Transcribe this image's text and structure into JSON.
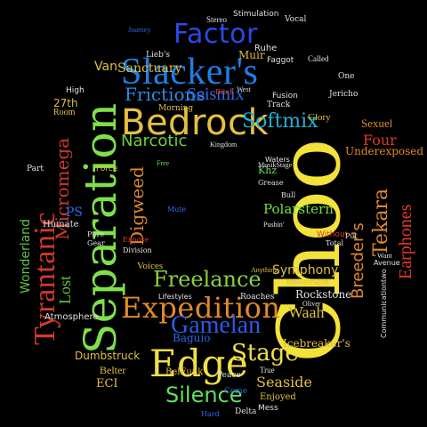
{
  "colors": {
    "background": "#000000"
  },
  "words": [
    {
      "text": "Choo",
      "color": "#f2e23a"
    },
    {
      "text": "Separation",
      "color": "#7fe04a"
    },
    {
      "text": "Slacker's",
      "color": "#1e7fe6"
    },
    {
      "text": "Bedrock",
      "color": "#e6c040"
    },
    {
      "text": "Edge",
      "color": "#f0e040"
    },
    {
      "text": "Tyrantanic",
      "color": "#d63a2a"
    },
    {
      "text": "Expedition",
      "color": "#e08a2a"
    },
    {
      "text": "Factor",
      "color": "#2a4ae6"
    },
    {
      "text": "Gamelan",
      "color": "#2a5ae6"
    },
    {
      "text": "Freelance",
      "color": "#8ad040"
    },
    {
      "text": "Stage",
      "color": "#f0e040"
    },
    {
      "text": "Silence",
      "color": "#60e060"
    },
    {
      "text": "Frictions",
      "color": "#2a8ae6"
    },
    {
      "text": "Softmix",
      "color": "#20b0d0"
    },
    {
      "text": "Seismix",
      "color": "#2a6ae6"
    },
    {
      "text": "Narcotic",
      "color": "#6ad040"
    },
    {
      "text": "Four",
      "color": "#e03a2a"
    },
    {
      "text": "Earphones",
      "color": "#e03a2a"
    },
    {
      "text": "Tekara",
      "color": "#e08a2a"
    },
    {
      "text": "Breeder's",
      "color": "#e08a2a"
    },
    {
      "text": "Waah",
      "color": "#e0c040"
    },
    {
      "text": "Seaside",
      "color": "#e0c040"
    },
    {
      "text": "Polarstern",
      "color": "#70e040"
    },
    {
      "text": "Symphony",
      "color": "#e0c040"
    },
    {
      "text": "Digweed",
      "color": "#e08a2a"
    },
    {
      "text": "Micromega",
      "color": "#d03a30"
    },
    {
      "text": "Lost",
      "color": "#60c040"
    },
    {
      "text": "Wonderland",
      "color": "#60c040"
    },
    {
      "text": "Sanctuary",
      "color": "#e0c040"
    },
    {
      "text": "Glory",
      "color": "#e0c040"
    },
    {
      "text": "Muir",
      "color": "#e0c040"
    },
    {
      "text": "Van",
      "color": "#e0c040"
    },
    {
      "text": "Sexuel",
      "color": "#e08a2a"
    },
    {
      "text": "Underexposed",
      "color": "#e08a2a"
    },
    {
      "text": "Baguio",
      "color": "#2a6ae6"
    },
    {
      "text": "Dumbstruck",
      "color": "#e0c040"
    },
    {
      "text": "Icebreaker's",
      "color": "#e0c040"
    },
    {
      "text": "Rockstone",
      "color": "#e0e0e0"
    },
    {
      "text": "Voices",
      "color": "#e0c040"
    },
    {
      "text": "Atmosphere",
      "color": "#e0e0e0"
    },
    {
      "text": "ECI",
      "color": "#e0c040"
    },
    {
      "text": "Belter",
      "color": "#e0c040"
    },
    {
      "text": "BelFunk",
      "color": "#e0c040"
    },
    {
      "text": "27th",
      "color": "#e0c040"
    },
    {
      "text": "Room",
      "color": "#e0c040"
    },
    {
      "text": "PS",
      "color": "#2a6ae6"
    },
    {
      "text": "Khz",
      "color": "#60e060"
    },
    {
      "text": "Ruhe",
      "color": "#e0e0e0"
    },
    {
      "text": "Enjoyed",
      "color": "#e0c040"
    },
    {
      "text": "Humate",
      "color": "#e0e0e0"
    },
    {
      "text": "Stereo",
      "color": "#e0e0e0"
    },
    {
      "text": "Stimulation",
      "color": "#e0e0e0"
    },
    {
      "text": "Vocal",
      "color": "#e0e0e0"
    },
    {
      "text": "Journey",
      "color": "#2a6ae6"
    },
    {
      "text": "Lieb's",
      "color": "#e0e0e0"
    },
    {
      "text": "Faggot",
      "color": "#e0e0e0"
    },
    {
      "text": "Called",
      "color": "#e0e0e0"
    },
    {
      "text": "One",
      "color": "#e0e0e0"
    },
    {
      "text": "Jericho",
      "color": "#e0e0e0"
    },
    {
      "text": "Fusion",
      "color": "#e0e0e0"
    },
    {
      "text": "Track",
      "color": "#e0e0e0"
    },
    {
      "text": "Bitch",
      "color": "#e03a2a"
    },
    {
      "text": "West",
      "color": "#e0e0e0"
    },
    {
      "text": "High",
      "color": "#e0e0e0"
    },
    {
      "text": "Morning",
      "color": "#e0c040"
    },
    {
      "text": "Kingdom",
      "color": "#e0e0e0"
    },
    {
      "text": "Part",
      "color": "#e0e0e0"
    },
    {
      "text": "Force",
      "color": "#e0c040"
    },
    {
      "text": "Free",
      "color": "#60e060"
    },
    {
      "text": "Bull",
      "color": "#e0e0e0"
    },
    {
      "text": "Pure",
      "color": "#e0e0e0"
    },
    {
      "text": "Without",
      "color": "#e03a2a"
    },
    {
      "text": "Put",
      "color": "#e0e0e0"
    },
    {
      "text": "Total",
      "color": "#e0e0e0"
    },
    {
      "text": "Want",
      "color": "#e0e0e0"
    },
    {
      "text": "Avenue",
      "color": "#e0e0e0"
    },
    {
      "text": "Division",
      "color": "#e0e0e0"
    },
    {
      "text": "Anything",
      "color": "#e0c040"
    },
    {
      "text": "Roaches",
      "color": "#e0e0e0"
    },
    {
      "text": "Movement",
      "color": "#e0c040"
    },
    {
      "text": "Oliver",
      "color": "#e0e0e0"
    },
    {
      "text": "Peace",
      "color": "#e0e0e0"
    },
    {
      "text": "Come",
      "color": "#2a6ae6"
    },
    {
      "text": "Mess",
      "color": "#e0e0e0"
    },
    {
      "text": "Delta",
      "color": "#e0e0e0"
    },
    {
      "text": "Hard",
      "color": "#2a6ae6"
    },
    {
      "text": "True",
      "color": "#e0e0e0"
    },
    {
      "text": "Lifestyles",
      "color": "#e0e0e0"
    },
    {
      "text": "Mute",
      "color": "#2a6ae6"
    },
    {
      "text": "Pushin'",
      "color": "#e0e0e0"
    },
    {
      "text": "Grease",
      "color": "#e0e0e0"
    },
    {
      "text": "Waters",
      "color": "#e0e0e0"
    },
    {
      "text": "MusikStage",
      "color": "#e0e0e0"
    },
    {
      "text": "Gear",
      "color": "#e0e0e0"
    },
    {
      "text": "Expose",
      "color": "#e03a2a"
    },
    {
      "text": "Communicationtwo",
      "color": "#e0e0e0"
    }
  ]
}
